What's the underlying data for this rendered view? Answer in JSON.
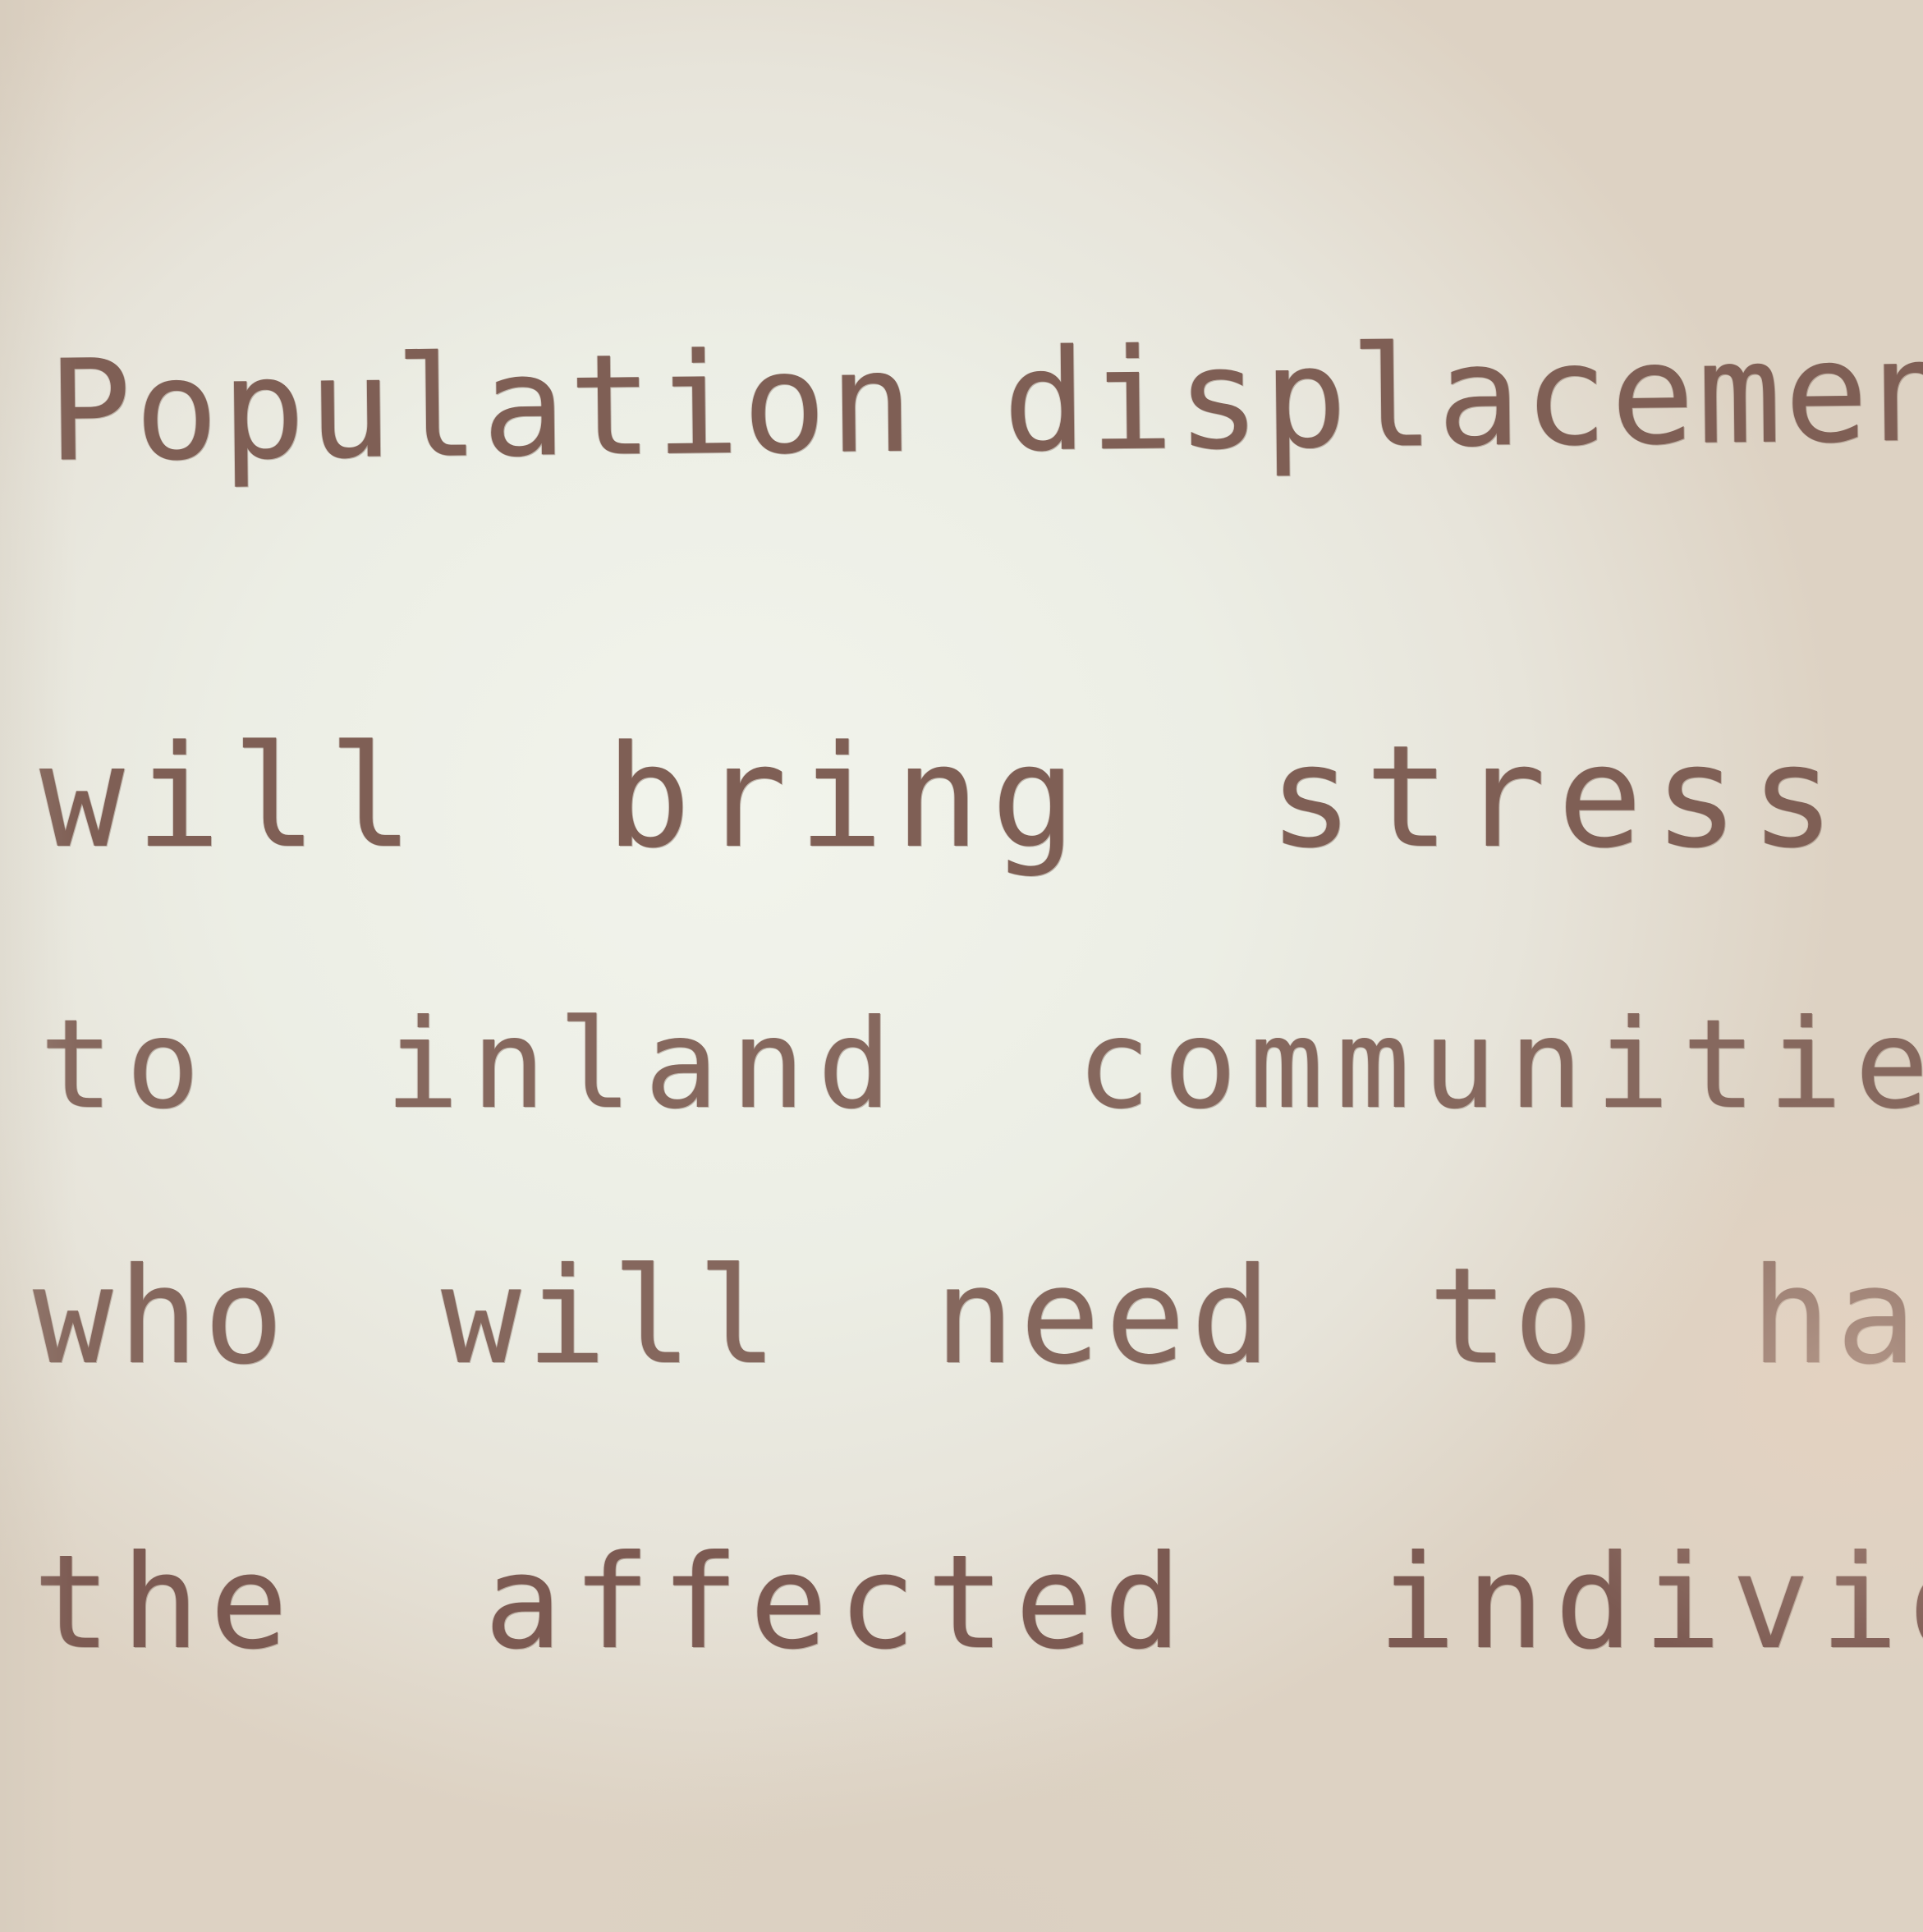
{
  "note": {
    "lines": [
      "Population displacement",
      "will bring stress",
      "to inland communities",
      "who will need to harbor",
      "the affected individuals"
    ]
  },
  "colors": {
    "paper": "#eceee5",
    "ink": "#7f5f55"
  }
}
